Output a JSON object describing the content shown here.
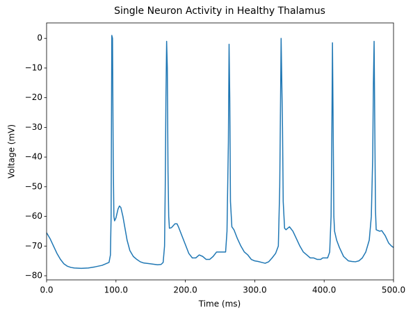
{
  "chart_data": {
    "type": "line",
    "title": "Single Neuron Activity in Healthy Thalamus",
    "xlabel": "Time (ms)",
    "ylabel": "Voltage (mV)",
    "x": [
      0,
      5,
      10,
      15,
      20,
      25,
      30,
      35,
      40,
      50,
      60,
      70,
      80,
      85,
      90,
      92,
      93,
      94,
      95,
      96,
      97,
      98,
      100,
      103,
      105,
      107,
      110,
      113,
      116,
      120,
      125,
      130,
      135,
      140,
      150,
      160,
      165,
      168,
      170,
      171,
      172,
      173,
      174,
      175,
      176,
      177,
      180,
      185,
      188,
      190,
      195,
      200,
      205,
      210,
      215,
      220,
      225,
      230,
      235,
      240,
      245,
      250,
      258,
      260,
      262,
      263,
      264,
      265,
      267,
      270,
      275,
      280,
      285,
      290,
      295,
      300,
      305,
      310,
      315,
      320,
      325,
      330,
      334,
      336,
      338,
      340,
      341,
      343,
      345,
      350,
      355,
      360,
      365,
      370,
      375,
      380,
      385,
      390,
      395,
      398,
      400,
      405,
      408,
      410,
      411,
      412,
      413,
      414,
      415,
      418,
      422,
      428,
      435,
      440,
      445,
      450,
      455,
      460,
      465,
      468,
      470,
      471,
      472,
      473,
      474,
      475,
      480,
      483,
      488,
      493,
      497,
      500
    ],
    "series": [
      {
        "name": "Voltage",
        "color": "#1f77b4",
        "values": [
          -65.5,
          -67.5,
          -70,
          -72.5,
          -74.5,
          -76,
          -76.8,
          -77.2,
          -77.4,
          -77.5,
          -77.4,
          -77,
          -76.5,
          -76,
          -75.5,
          -73,
          -60,
          1,
          0,
          -40,
          -60,
          -61.5,
          -60.5,
          -57.5,
          -56.5,
          -57,
          -60,
          -64,
          -68,
          -71.5,
          -73.5,
          -74.5,
          -75.3,
          -75.7,
          -76,
          -76.3,
          -76.2,
          -75.5,
          -70,
          -50,
          -20,
          -1,
          -10,
          -45,
          -60,
          -64,
          -63.8,
          -62.5,
          -62.5,
          -63.5,
          -66.5,
          -69.5,
          -72.5,
          -74,
          -74,
          -73,
          -73.5,
          -74.5,
          -74.5,
          -73.5,
          -72,
          -72,
          -72,
          -65,
          -35,
          -2,
          -20,
          -55,
          -63.5,
          -64.5,
          -67.5,
          -70,
          -72,
          -73,
          -74.5,
          -75,
          -75.2,
          -75.5,
          -75.8,
          -75.3,
          -74,
          -72.5,
          -70,
          -50,
          0,
          -30,
          -55,
          -64,
          -64.5,
          -63.5,
          -65,
          -67.5,
          -70,
          -72,
          -73,
          -74,
          -74,
          -74.5,
          -74.5,
          -74,
          -74,
          -74,
          -72,
          -60,
          -35,
          -1.5,
          -30,
          -60,
          -65,
          -68,
          -70.5,
          -73.5,
          -75,
          -75.2,
          -75.3,
          -75,
          -74,
          -72,
          -68,
          -60,
          -40,
          -15,
          -1,
          -30,
          -58,
          -64.5,
          -65,
          -64.8,
          -66.5,
          -69,
          -70,
          -70.5
        ]
      }
    ],
    "xlim": [
      0,
      500
    ],
    "xticks": [
      {
        "value": 0,
        "label": "0.0"
      },
      {
        "value": 100,
        "label": "100.0"
      },
      {
        "value": 200,
        "label": "200.0"
      },
      {
        "value": 300,
        "label": "300.0"
      },
      {
        "value": 400,
        "label": "400.0"
      },
      {
        "value": 500,
        "label": "500.0"
      }
    ],
    "ylim": [
      -81.4,
      5.2
    ],
    "yticks": [
      {
        "value": -80,
        "label": "−80"
      },
      {
        "value": -70,
        "label": "−70"
      },
      {
        "value": -60,
        "label": "−60"
      },
      {
        "value": -50,
        "label": "−50"
      },
      {
        "value": -40,
        "label": "−40"
      },
      {
        "value": -30,
        "label": "−30"
      },
      {
        "value": -20,
        "label": "−20"
      },
      {
        "value": -10,
        "label": "−10"
      },
      0
    ],
    "grid": false
  }
}
